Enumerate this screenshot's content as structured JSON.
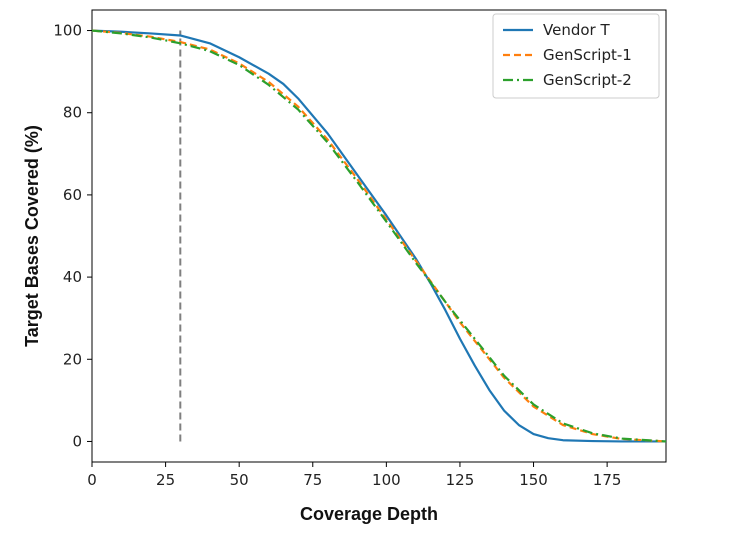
{
  "chart_data": {
    "type": "line",
    "title": "",
    "xlabel": "Coverage Depth",
    "ylabel": "Target Bases Covered (%)",
    "xlim": [
      0,
      195
    ],
    "ylim": [
      -5,
      105
    ],
    "xticks": [
      0,
      25,
      50,
      75,
      100,
      125,
      150,
      175
    ],
    "yticks": [
      0,
      20,
      40,
      60,
      80,
      100
    ],
    "grid": false,
    "legend_position": "top-right",
    "reference_line": {
      "x": 30,
      "y_range": [
        0,
        100
      ],
      "style": "dashed",
      "color": "#7f7f7f"
    },
    "series": [
      {
        "name": "Vendor T",
        "color": "#1f77b4",
        "style": "solid",
        "x": [
          0,
          10,
          20,
          30,
          40,
          50,
          60,
          65,
          70,
          80,
          90,
          100,
          110,
          115,
          120,
          125,
          130,
          135,
          140,
          145,
          150,
          155,
          160,
          170,
          180,
          195
        ],
        "y": [
          100,
          99.7,
          99.3,
          98.8,
          96.9,
          93.5,
          89.5,
          87,
          83.5,
          75,
          65,
          55,
          44.5,
          38.5,
          32,
          25,
          18.5,
          12.5,
          7.5,
          4,
          1.8,
          0.8,
          0.3,
          0.1,
          0,
          0
        ]
      },
      {
        "name": "GenScript-1",
        "color": "#ff7f0e",
        "style": "dashed",
        "x": [
          0,
          10,
          20,
          30,
          40,
          50,
          60,
          70,
          80,
          90,
          100,
          110,
          120,
          125,
          130,
          140,
          150,
          160,
          170,
          180,
          195
        ],
        "y": [
          100,
          99.4,
          98.5,
          97.2,
          95.4,
          92,
          87.5,
          81.5,
          73.5,
          64,
          54,
          44,
          34,
          29,
          24.5,
          15.5,
          8.5,
          4,
          1.8,
          0.6,
          0
        ]
      },
      {
        "name": "GenScript-2",
        "color": "#2ca02c",
        "style": "dashdot",
        "x": [
          0,
          10,
          20,
          30,
          40,
          50,
          60,
          70,
          80,
          90,
          100,
          110,
          120,
          125,
          130,
          140,
          150,
          160,
          170,
          180,
          195
        ],
        "y": [
          100,
          99.3,
          98.3,
          96.9,
          95,
          91.6,
          86.8,
          80.8,
          72.8,
          63.3,
          53.5,
          43.5,
          34,
          29.5,
          25,
          16,
          9,
          4.4,
          2,
          0.7,
          0
        ]
      }
    ]
  }
}
